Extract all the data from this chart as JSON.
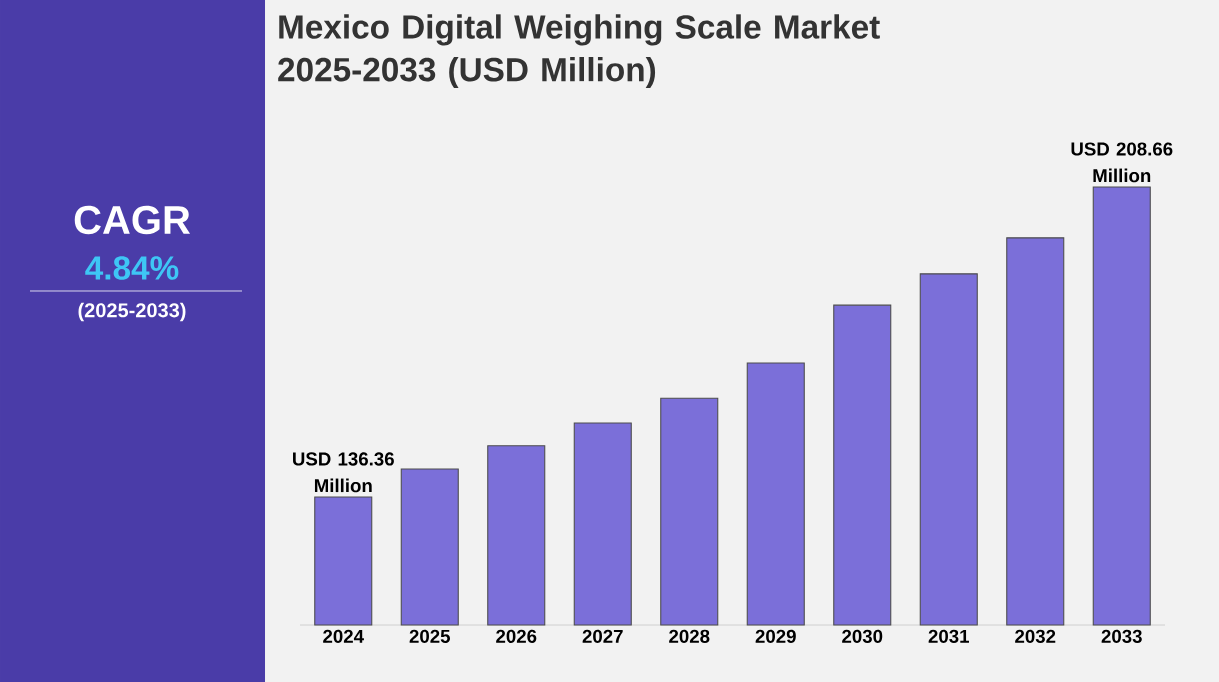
{
  "chart_data": [
    {
      "type": "other",
      "title": "CAGR",
      "annotations": [
        "4.84%",
        "(2025-2033)"
      ]
    },
    {
      "type": "bar",
      "title": "Mexico Digital Weighing Scale Market 2025-2033 (USD Million)",
      "ylim": [
        106.5,
        208.66
      ],
      "categories": [
        "2024",
        "2025",
        "2026",
        "2027",
        "2028",
        "2029",
        "2030",
        "2031",
        "2032",
        "2033"
      ],
      "values": [
        136.36,
        142.9,
        148.3,
        153.6,
        159.4,
        167.6,
        181.1,
        188.4,
        196.8,
        208.66
      ],
      "value_labels": [
        "USD 136.36 Million",
        null,
        null,
        null,
        null,
        null,
        null,
        null,
        null,
        "USD 208.66 Million"
      ],
      "color": "#7b6fd9"
    }
  ]
}
